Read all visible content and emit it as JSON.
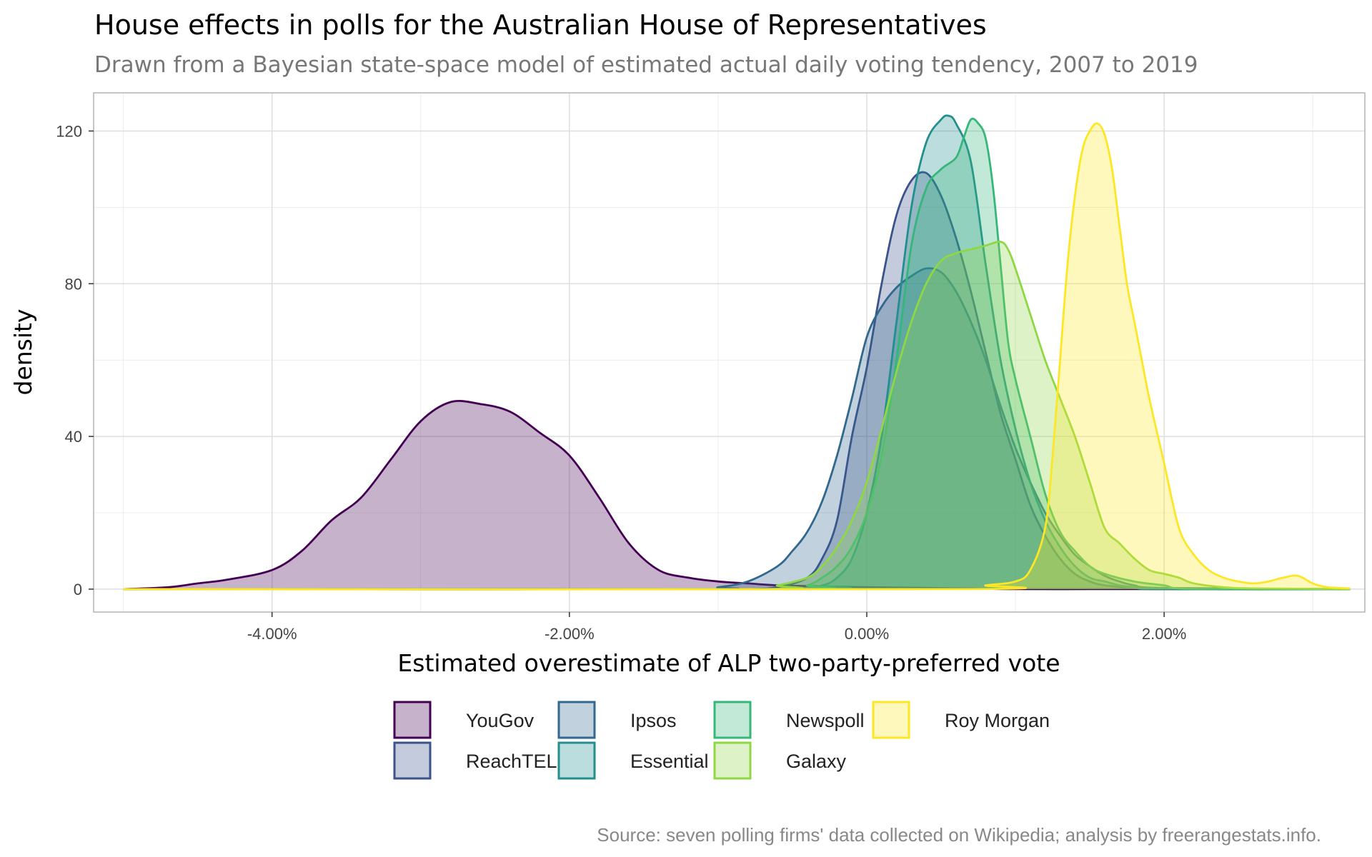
{
  "chart_data": {
    "type": "area",
    "title": "House effects in polls for the Australian House of Representatives",
    "subtitle": "Drawn from a Bayesian state-space model of estimated actual daily voting tendency, 2007 to 2019",
    "xlabel": "Estimated overestimate of ALP two-party-preferred vote",
    "ylabel": "density",
    "caption": "Source: seven polling firms' data collected on Wikipedia; analysis by freerangestats.info.",
    "xlim": [
      -0.052,
      0.0335
    ],
    "ylim": [
      -6,
      130
    ],
    "x_ticks": [
      -0.04,
      -0.02,
      0,
      0.02
    ],
    "x_tick_labels": [
      "-4.00%",
      "-2.00%",
      "0.00%",
      "2.00%"
    ],
    "y_ticks": [
      0,
      40,
      80,
      120
    ],
    "y_tick_labels": [
      "0",
      "40",
      "80",
      "120"
    ],
    "grid": true,
    "legend_position": "bottom",
    "series": [
      {
        "name": "YouGov",
        "color": "#440154",
        "x": [
          -0.05,
          -0.047,
          -0.045,
          -0.043,
          -0.04,
          -0.038,
          -0.036,
          -0.034,
          -0.032,
          -0.03,
          -0.028,
          -0.026,
          -0.024,
          -0.022,
          -0.02,
          -0.018,
          -0.016,
          -0.014,
          -0.012,
          -0.01,
          -0.008,
          -0.006,
          -0.004,
          -0.002,
          0,
          0.002,
          0.004,
          0.006,
          0.008,
          0.01,
          0.015,
          0.02,
          0.0325
        ],
        "y": [
          0,
          0.5,
          1.5,
          2.5,
          5,
          10,
          18,
          24,
          34,
          44,
          49,
          48.5,
          46.5,
          41,
          35,
          24,
          12,
          5,
          3,
          2,
          1.5,
          1,
          0.8,
          0.6,
          0.5,
          0.4,
          0.3,
          0.2,
          0.1,
          0,
          0,
          0,
          0
        ]
      },
      {
        "name": "ReachTEL",
        "color": "#3b528b",
        "x": [
          -0.05,
          -0.012,
          -0.008,
          -0.006,
          -0.004,
          -0.003,
          -0.002,
          -0.001,
          0,
          0.001,
          0.002,
          0.003,
          0.004,
          0.005,
          0.006,
          0.007,
          0.008,
          0.009,
          0.01,
          0.011,
          0.012,
          0.013,
          0.014,
          0.015,
          0.016,
          0.018,
          0.02,
          0.0325
        ],
        "y": [
          0,
          0,
          0,
          0.5,
          3,
          8,
          18,
          40,
          58,
          80,
          98,
          107,
          109,
          103,
          92,
          78,
          62,
          46,
          34,
          22,
          14,
          8,
          4,
          2,
          1,
          0.3,
          0,
          0
        ]
      },
      {
        "name": "Ipsos",
        "color": "#31688e",
        "x": [
          -0.05,
          -0.012,
          -0.01,
          -0.008,
          -0.006,
          -0.005,
          -0.004,
          -0.003,
          -0.002,
          -0.001,
          0,
          0.001,
          0.002,
          0.003,
          0.004,
          0.005,
          0.006,
          0.007,
          0.008,
          0.009,
          0.01,
          0.011,
          0.012,
          0.013,
          0.014,
          0.015,
          0.016,
          0.017,
          0.018,
          0.02,
          0.0325
        ],
        "y": [
          0,
          0,
          0.5,
          2,
          6,
          10,
          15,
          23,
          35,
          50,
          66,
          74,
          79,
          82,
          84,
          83,
          78,
          70,
          60,
          48,
          37,
          28,
          20,
          14,
          9,
          6,
          3.5,
          2,
          1,
          0.3,
          0
        ]
      },
      {
        "name": "Essential",
        "color": "#21908d",
        "x": [
          -0.05,
          -0.005,
          -0.003,
          -0.002,
          -0.001,
          0,
          0.001,
          0.002,
          0.003,
          0.004,
          0.005,
          0.0055,
          0.006,
          0.007,
          0.008,
          0.009,
          0.01,
          0.011,
          0.012,
          0.013,
          0.014,
          0.015,
          0.016,
          0.017,
          0.018,
          0.02,
          0.0325
        ],
        "y": [
          0,
          0,
          1,
          3,
          8,
          20,
          40,
          70,
          100,
          117,
          123,
          124,
          122,
          112,
          85,
          60,
          42,
          28,
          18,
          11,
          6,
          3,
          2,
          1,
          0.5,
          0,
          0
        ]
      },
      {
        "name": "Newspoll",
        "color": "#35b779",
        "x": [
          -0.05,
          -0.006,
          -0.004,
          -0.003,
          -0.002,
          -0.001,
          0,
          0.001,
          0.002,
          0.003,
          0.004,
          0.005,
          0.006,
          0.0065,
          0.007,
          0.0075,
          0.008,
          0.0085,
          0.009,
          0.0095,
          0.01,
          0.011,
          0.012,
          0.013,
          0.014,
          0.015,
          0.016,
          0.018,
          0.02,
          0.022,
          0.0325
        ],
        "y": [
          0,
          0,
          1,
          3,
          6,
          11,
          20,
          35,
          60,
          90,
          105,
          110,
          113,
          118,
          123,
          122,
          118,
          105,
          85,
          65,
          55,
          40,
          25,
          15,
          10,
          6,
          4,
          2,
          1,
          0,
          0
        ]
      },
      {
        "name": "Galaxy",
        "color": "#8fd744",
        "x": [
          -0.05,
          -0.008,
          -0.006,
          -0.004,
          -0.003,
          -0.002,
          -0.001,
          0,
          0.001,
          0.002,
          0.003,
          0.004,
          0.005,
          0.006,
          0.007,
          0.008,
          0.009,
          0.0095,
          0.01,
          0.011,
          0.012,
          0.013,
          0.014,
          0.015,
          0.016,
          0.017,
          0.018,
          0.019,
          0.02,
          0.021,
          0.022,
          0.024,
          0.026,
          0.0325
        ],
        "y": [
          0,
          0,
          1,
          3,
          6,
          11,
          18,
          28,
          42,
          57,
          70,
          80,
          86,
          88,
          89,
          90,
          91,
          89,
          84,
          72,
          60,
          50,
          40,
          28,
          16,
          12,
          8,
          5,
          4,
          3,
          1.5,
          0.5,
          0.2,
          0
        ]
      },
      {
        "name": "Roy Morgan",
        "color": "#fde725",
        "x": [
          -0.05,
          0.006,
          0.008,
          0.01,
          0.011,
          0.012,
          0.0125,
          0.013,
          0.0135,
          0.014,
          0.0145,
          0.015,
          0.0155,
          0.016,
          0.0165,
          0.017,
          0.0175,
          0.018,
          0.0185,
          0.019,
          0.02,
          0.021,
          0.022,
          0.023,
          0.024,
          0.025,
          0.026,
          0.027,
          0.028,
          0.029,
          0.03,
          0.031,
          0.0325
        ],
        "y": [
          0,
          0,
          1,
          2,
          5,
          16,
          35,
          60,
          85,
          103,
          115,
          120,
          122,
          119,
          110,
          95,
          80,
          70,
          60,
          50,
          33,
          16,
          9,
          5,
          3,
          2,
          1.5,
          2,
          3,
          3.5,
          1.5,
          0.5,
          0.2
        ]
      }
    ]
  }
}
